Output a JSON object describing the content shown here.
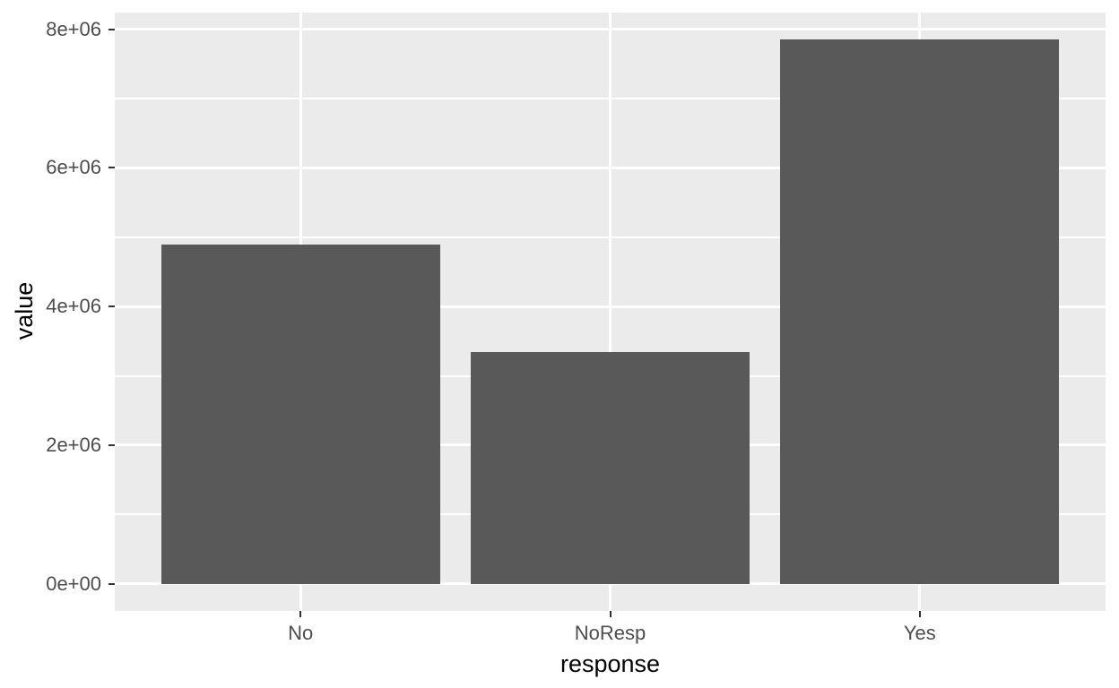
{
  "chart_data": {
    "type": "bar",
    "title": "",
    "xlabel": "response",
    "ylabel": "value",
    "categories": [
      "No",
      "NoResp",
      "Yes"
    ],
    "values": [
      4890000,
      3340000,
      7850000
    ],
    "ylim": [
      0,
      8000000
    ],
    "yticks": [
      0,
      2000000,
      4000000,
      6000000,
      8000000
    ],
    "ytick_labels": [
      "0e+00",
      "2e+06",
      "4e+06",
      "6e+06",
      "8e+06"
    ],
    "minor_yticks": [
      1000000,
      3000000,
      5000000,
      7000000
    ],
    "grid": "major-and-minor, white on grey panel",
    "legend": "none",
    "bar_width_fraction": 0.9,
    "colors": {
      "bar_fill": "#595959",
      "panel_background": "#EBEBEB",
      "gridline": "#FFFFFF",
      "axis_text": "#4D4D4D",
      "axis_title": "#000000",
      "tick_mark": "#333333",
      "page_background": "#FFFFFF"
    }
  }
}
